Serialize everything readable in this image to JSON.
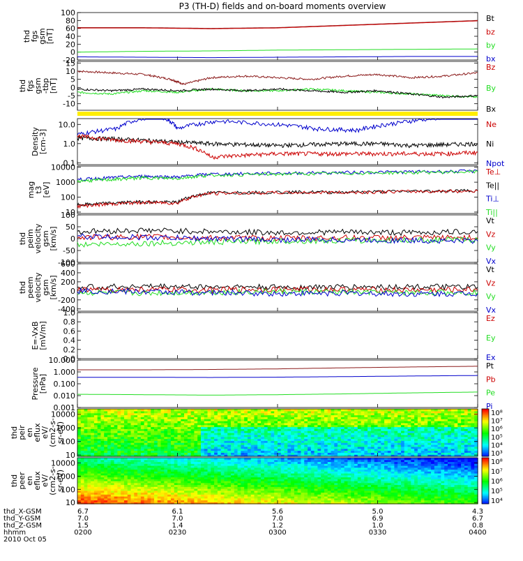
{
  "title": "P3 (TH-D) fields and on-board moments overview",
  "colors": {
    "black": "#000000",
    "red": "#cc0000",
    "green": "#22dd22",
    "blue": "#0000cc",
    "darkred": "#8b1a1a",
    "yellow": "#ffee00"
  },
  "chart_data": [
    {
      "type": "line",
      "panel": "fgs-gsm",
      "ylabel": [
        "thd",
        "fgs",
        "gsm",
        "[nT]"
      ],
      "yticks": [
        "100",
        "80",
        "60",
        "40",
        "20",
        "0",
        "-20"
      ],
      "ylim": [
        -20,
        100
      ],
      "legend": [
        {
          "name": "Bt",
          "color": "black"
        },
        {
          "name": "bz",
          "color": "red"
        },
        {
          "name": "by",
          "color": "green"
        },
        {
          "name": "bx",
          "color": "blue"
        }
      ],
      "series": [
        {
          "name": "Bt",
          "color": "darkred",
          "x": [
            0,
            20,
            40,
            60,
            80,
            100,
            120
          ],
          "y": [
            62,
            62,
            60,
            62,
            68,
            74,
            80
          ]
        },
        {
          "name": "bz",
          "color": "red",
          "x": [
            0,
            20,
            40,
            60,
            80,
            100,
            120
          ],
          "y": [
            61,
            61,
            59,
            61,
            67,
            73,
            79
          ]
        },
        {
          "name": "by",
          "color": "green",
          "x": [
            0,
            20,
            40,
            60,
            80,
            100,
            120
          ],
          "y": [
            0,
            2,
            3,
            5,
            6,
            7,
            8
          ]
        },
        {
          "name": "bx",
          "color": "blue",
          "x": [
            0,
            20,
            40,
            60,
            80,
            100,
            120
          ],
          "y": [
            -12,
            -13,
            -14,
            -13,
            -12,
            -11,
            -11
          ]
        }
      ]
    },
    {
      "type": "line",
      "panel": "fgs-gsm-tbp",
      "ylabel": [
        "thd",
        "fgs",
        "gsm",
        "-tbp",
        "[nT]"
      ],
      "yticks": [
        "15",
        "10",
        "5",
        "0",
        "-5",
        "-10"
      ],
      "ylim": [
        -14,
        16
      ],
      "legend": [
        {
          "name": "Bz",
          "color": "red"
        },
        {
          "name": "By",
          "color": "green"
        },
        {
          "name": "Bx",
          "color": "black"
        }
      ],
      "series": [
        {
          "name": "Bz",
          "color": "darkred",
          "x": [
            0,
            10,
            20,
            28,
            32,
            40,
            50,
            60,
            70,
            80,
            90,
            100,
            110,
            120
          ],
          "y": [
            10,
            9,
            8,
            5,
            2,
            6,
            7,
            6,
            5,
            7,
            8,
            6,
            7,
            9
          ]
        },
        {
          "name": "By",
          "color": "green",
          "x": [
            0,
            10,
            20,
            30,
            40,
            50,
            60,
            70,
            80,
            90,
            100,
            110,
            120
          ],
          "y": [
            -3,
            -4,
            -2,
            -3,
            -1,
            -2,
            -2,
            -1,
            -2,
            -3,
            -4,
            -5,
            -6
          ]
        },
        {
          "name": "Bx",
          "color": "black",
          "x": [
            0,
            10,
            20,
            30,
            40,
            50,
            60,
            70,
            80,
            90,
            100,
            110,
            120
          ],
          "y": [
            -1,
            -2,
            -1,
            -2,
            -1,
            -2,
            -1,
            -2,
            -3,
            -2,
            -4,
            -6,
            -5
          ]
        }
      ]
    },
    {
      "type": "line",
      "panel": "density",
      "log": true,
      "ylabel": [
        "Density",
        "[cm-3]"
      ],
      "yticks": [
        "10.0",
        "1.0",
        "0.1"
      ],
      "ylim": [
        0.08,
        20
      ],
      "legend": [
        {
          "name": "Ne",
          "color": "red"
        },
        {
          "name": "Ni",
          "color": "black"
        },
        {
          "name": "Npot",
          "color": "blue"
        }
      ],
      "series": [
        {
          "name": "Npot",
          "color": "blue",
          "x": [
            0,
            12,
            24,
            30,
            42,
            60,
            72,
            84,
            96,
            108,
            120
          ],
          "y": [
            3,
            6,
            30,
            6,
            15,
            10,
            6,
            5,
            12,
            22,
            25
          ]
        },
        {
          "name": "Ni",
          "color": "black",
          "x": [
            0,
            10,
            20,
            30,
            40,
            50,
            60,
            70,
            80,
            90,
            100,
            110,
            120
          ],
          "y": [
            2,
            1.8,
            1.5,
            1.2,
            1,
            0.9,
            0.8,
            0.9,
            1,
            1,
            0.8,
            0.9,
            1
          ]
        },
        {
          "name": "Ne",
          "color": "red",
          "x": [
            0,
            10,
            20,
            30,
            40,
            50,
            60,
            70,
            80,
            90,
            100,
            110,
            120
          ],
          "y": [
            2.5,
            1.6,
            1.3,
            1,
            0.2,
            0.25,
            0.3,
            0.3,
            0.3,
            0.3,
            0.3,
            0.3,
            0.35
          ]
        }
      ]
    },
    {
      "type": "line",
      "panel": "temperature",
      "log": true,
      "ylabel": [
        "mag",
        "t3",
        "[eV]"
      ],
      "yticks": [
        "10000",
        "1000",
        "100",
        "10"
      ],
      "ylim": [
        8,
        12000
      ],
      "legend": [
        {
          "name": "Te⊥",
          "color": "red"
        },
        {
          "name": "Te||",
          "color": "black"
        },
        {
          "name": "Ti⊥",
          "color": "blue"
        },
        {
          "name": "Ti||",
          "color": "green"
        }
      ],
      "series": [
        {
          "name": "Ti⊥",
          "color": "blue",
          "x": [
            0,
            10,
            20,
            30,
            40,
            60,
            80,
            100,
            120
          ],
          "y": [
            1500,
            2000,
            2500,
            2200,
            3500,
            4000,
            4500,
            5000,
            5500
          ]
        },
        {
          "name": "Ti||",
          "color": "green",
          "x": [
            0,
            10,
            20,
            30,
            40,
            60,
            80,
            100,
            120
          ],
          "y": [
            1200,
            1500,
            2000,
            1800,
            3000,
            3500,
            4000,
            4500,
            5000
          ]
        },
        {
          "name": "Te||",
          "color": "black",
          "x": [
            0,
            10,
            20,
            30,
            40,
            60,
            80,
            100,
            120
          ],
          "y": [
            30,
            40,
            50,
            45,
            200,
            220,
            220,
            250,
            280
          ]
        },
        {
          "name": "Te⊥",
          "color": "red",
          "x": [
            0,
            10,
            20,
            30,
            40,
            60,
            80,
            100,
            120
          ],
          "y": [
            25,
            35,
            45,
            40,
            180,
            200,
            210,
            240,
            260
          ]
        }
      ]
    },
    {
      "type": "line",
      "panel": "peim-velocity",
      "ylabel": [
        "thd",
        "peim",
        "velocity",
        "gsm",
        "[km/s]"
      ],
      "yticks": [
        "100",
        "50",
        "0",
        "-50",
        "-100"
      ],
      "ylim": [
        -100,
        100
      ],
      "legend": [
        {
          "name": "Vt",
          "color": "black"
        },
        {
          "name": "Vz",
          "color": "red"
        },
        {
          "name": "Vy",
          "color": "green"
        },
        {
          "name": "Vx",
          "color": "blue"
        }
      ],
      "series": [
        {
          "name": "Vt",
          "color": "black",
          "x": [
            0,
            20,
            40,
            60,
            80,
            100,
            120
          ],
          "y": [
            30,
            35,
            30,
            25,
            28,
            25,
            30
          ]
        },
        {
          "name": "Vz",
          "color": "red",
          "x": [
            0,
            20,
            40,
            60,
            80,
            100,
            120
          ],
          "y": [
            5,
            8,
            3,
            2,
            4,
            3,
            5
          ]
        },
        {
          "name": "Vy",
          "color": "green",
          "x": [
            0,
            20,
            40,
            60,
            80,
            100,
            120
          ],
          "y": [
            -25,
            -20,
            -15,
            -10,
            -8,
            -6,
            -5
          ]
        },
        {
          "name": "Vx",
          "color": "blue",
          "x": [
            0,
            20,
            40,
            60,
            80,
            100,
            120
          ],
          "y": [
            10,
            5,
            0,
            -5,
            -5,
            -8,
            -10
          ]
        }
      ]
    },
    {
      "type": "line",
      "panel": "peem-velocity",
      "ylabel": [
        "thd",
        "peem",
        "velocity",
        "gsm",
        "[km/s]"
      ],
      "yticks": [
        "600",
        "400",
        "200",
        "0",
        "-200",
        "-400"
      ],
      "ylim": [
        -450,
        600
      ],
      "legend": [
        {
          "name": "Vt",
          "color": "black"
        },
        {
          "name": "Vz",
          "color": "red"
        },
        {
          "name": "Vy",
          "color": "green"
        },
        {
          "name": "Vx",
          "color": "blue"
        }
      ],
      "series": [
        {
          "name": "Vt",
          "color": "black",
          "x": [
            0,
            20,
            40,
            60,
            80,
            100,
            120
          ],
          "y": [
            80,
            100,
            90,
            80,
            85,
            90,
            80
          ]
        },
        {
          "name": "Vz",
          "color": "red",
          "x": [
            0,
            20,
            40,
            60,
            80,
            100,
            120
          ],
          "y": [
            20,
            30,
            20,
            40,
            30,
            20,
            30
          ]
        },
        {
          "name": "Vy",
          "color": "green",
          "x": [
            0,
            20,
            40,
            60,
            80,
            100,
            120
          ],
          "y": [
            -40,
            -50,
            -30,
            -20,
            -30,
            -40,
            -30
          ]
        },
        {
          "name": "Vx",
          "color": "blue",
          "x": [
            0,
            20,
            40,
            60,
            80,
            100,
            120
          ],
          "y": [
            0,
            -20,
            -40,
            -60,
            -50,
            -70,
            -60
          ]
        }
      ]
    },
    {
      "type": "line",
      "panel": "efield",
      "ylabel": [
        "E=-VxB",
        "[mV/m]"
      ],
      "yticks": [
        "1.0",
        "0.8",
        "0.6",
        "0.4",
        "0.2",
        "0.0"
      ],
      "ylim": [
        0,
        1
      ],
      "legend": [
        {
          "name": "Ez",
          "color": "red"
        },
        {
          "name": "Ey",
          "color": "green"
        },
        {
          "name": "Ex",
          "color": "blue"
        }
      ],
      "series": []
    },
    {
      "type": "line",
      "panel": "pressure",
      "log": true,
      "ylabel": [
        "Pressure",
        "[nPa]"
      ],
      "yticks": [
        "10.000",
        "1.000",
        "0.100",
        "0.010",
        "0.001"
      ],
      "ylim": [
        0.001,
        10
      ],
      "legend": [
        {
          "name": "Pt",
          "color": "black"
        },
        {
          "name": "Pb",
          "color": "red"
        },
        {
          "name": "Pe",
          "color": "green"
        },
        {
          "name": "Pi",
          "color": "blue"
        }
      ],
      "series": [
        {
          "name": "Pt",
          "color": "darkred",
          "x": [
            0,
            20,
            40,
            60,
            80,
            100,
            120
          ],
          "y": [
            1.5,
            1.5,
            1.6,
            1.8,
            2.2,
            2.6,
            3.0
          ]
        },
        {
          "name": "Pb",
          "color": "blue",
          "x": [
            0,
            20,
            40,
            60,
            80,
            100,
            120
          ],
          "y": [
            0.35,
            0.35,
            0.34,
            0.36,
            0.4,
            0.45,
            0.5
          ]
        },
        {
          "name": "Pe",
          "color": "green",
          "x": [
            0,
            20,
            40,
            60,
            80,
            100,
            120
          ],
          "y": [
            0.013,
            0.012,
            0.011,
            0.012,
            0.014,
            0.017,
            0.02
          ]
        }
      ]
    },
    {
      "type": "heatmap",
      "panel": "peir-eflux",
      "log": true,
      "ylabel": [
        "thd",
        "peir",
        "en",
        "eflux",
        "eV/",
        "(cm2-s-",
        "sr-eV)"
      ],
      "yticks": [
        "10000",
        "1000",
        "100",
        "10"
      ],
      "ylim": [
        8,
        25000
      ],
      "colorbar_ticks": [
        "10⁸",
        "10⁷",
        "10⁶",
        "10⁵",
        "10⁴",
        "10³"
      ]
    },
    {
      "type": "heatmap",
      "panel": "peer-eflux",
      "log": true,
      "ylabel": [
        "thd",
        "peer",
        "en",
        "eflux",
        "eV/",
        "(cm2-s-",
        "sr-eV)"
      ],
      "yticks": [
        "10000",
        "1000",
        "100",
        "10"
      ],
      "ylim": [
        8,
        25000
      ],
      "colorbar_ticks": [
        "10⁸",
        "10⁷",
        "10⁶",
        "10⁵",
        "10⁴"
      ]
    }
  ],
  "xaxis": {
    "row_labels": [
      "thd_X-GSM",
      "thd_Y-GSM",
      "thd_Z-GSM",
      "hhmm",
      "2010 Oct 05"
    ],
    "columns": [
      {
        "values": [
          "6.7",
          "7.0",
          "1.5",
          "0200"
        ]
      },
      {
        "values": [
          "6.1",
          "7.0",
          "1.4",
          "0230"
        ]
      },
      {
        "values": [
          "5.6",
          "7.0",
          "1.2",
          "0300"
        ]
      },
      {
        "values": [
          "5.0",
          "6.9",
          "1.0",
          "0330"
        ]
      },
      {
        "values": [
          "4.3",
          "6.7",
          "0.8",
          "0400"
        ]
      }
    ]
  }
}
